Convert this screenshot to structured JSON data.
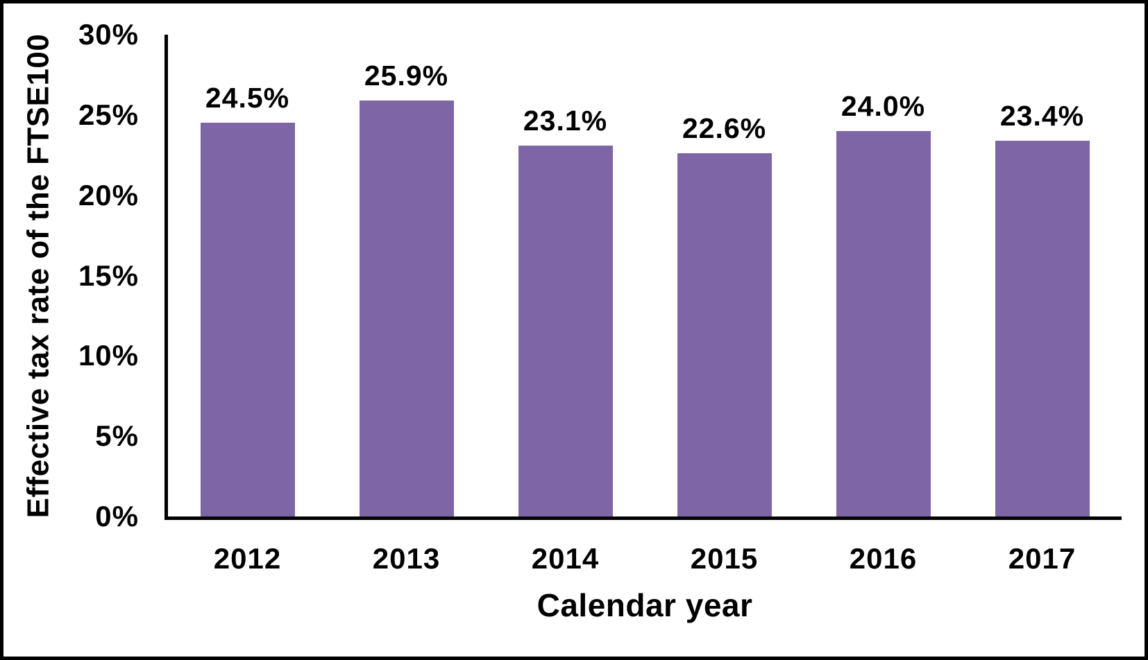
{
  "chart_data": {
    "type": "bar",
    "title": "",
    "categories": [
      "2012",
      "2013",
      "2014",
      "2015",
      "2016",
      "2017"
    ],
    "values": [
      24.5,
      25.9,
      23.1,
      22.6,
      24.0,
      23.4
    ],
    "value_labels": [
      "24.5%",
      "25.9%",
      "23.1%",
      "22.6%",
      "24.0%",
      "23.4%"
    ],
    "xlabel": "Calendar year",
    "ylabel": "Effective tax rate of the FTSE100",
    "ylim": [
      0,
      30
    ],
    "yticks": [
      {
        "value": 0,
        "label": "0%"
      },
      {
        "value": 5,
        "label": "5%"
      },
      {
        "value": 10,
        "label": "10%"
      },
      {
        "value": 15,
        "label": "15%"
      },
      {
        "value": 20,
        "label": "20%"
      },
      {
        "value": 25,
        "label": "25%"
      },
      {
        "value": 30,
        "label": "30%"
      }
    ],
    "grid": false,
    "legend": null,
    "colors": {
      "bar": "#7E66A6",
      "axis": "#000000",
      "text": "#000000",
      "frame": "#000000",
      "background": "#FFFFFF"
    }
  }
}
